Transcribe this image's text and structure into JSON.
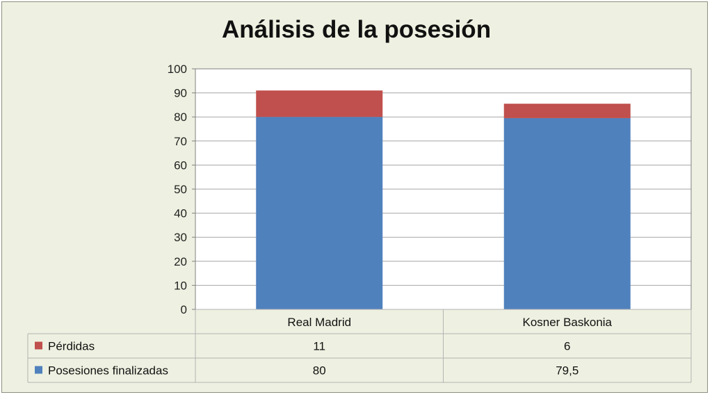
{
  "chart_data": {
    "type": "bar",
    "stacked": true,
    "title": "Análisis de la posesión",
    "categories": [
      "Real Madrid",
      "Kosner Baskonia"
    ],
    "series": [
      {
        "name": "Posesiones finalizadas",
        "values": [
          80,
          79.5
        ],
        "labels": [
          "80",
          "79,5"
        ],
        "color": "#4f81bd"
      },
      {
        "name": "Pérdidas",
        "values": [
          11,
          6
        ],
        "labels": [
          "11",
          "6"
        ],
        "color": "#c0504d"
      }
    ],
    "yticks": [
      "0",
      "10",
      "20",
      "30",
      "40",
      "50",
      "60",
      "70",
      "80",
      "90",
      "100"
    ],
    "ylim": [
      0,
      100
    ],
    "grid": true,
    "legend": "data-table",
    "table_row_order": [
      1,
      0
    ]
  }
}
